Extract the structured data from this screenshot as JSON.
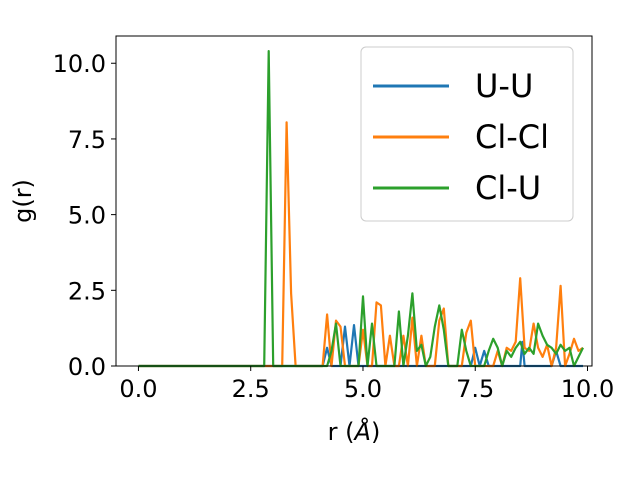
{
  "chart_data": {
    "type": "line",
    "title": "",
    "xlabel": "r (",
    "xlabel_symbol": "Å",
    "xlabel_close": ")",
    "ylabel": "g(r)",
    "xlim": [
      -0.5,
      10.1
    ],
    "ylim": [
      0,
      10.9
    ],
    "grid": false,
    "legend_position": "top-right",
    "x_ticks": [
      {
        "value": 0.0,
        "label": "0.0"
      },
      {
        "value": 2.5,
        "label": "2.5"
      },
      {
        "value": 5.0,
        "label": "5.0"
      },
      {
        "value": 7.5,
        "label": "7.5"
      },
      {
        "value": 10.0,
        "label": "10.0"
      }
    ],
    "y_ticks": [
      {
        "value": 0.0,
        "label": "0.0"
      },
      {
        "value": 2.5,
        "label": "2.5"
      },
      {
        "value": 5.0,
        "label": "5.0"
      },
      {
        "value": 7.5,
        "label": "7.5"
      },
      {
        "value": 10.0,
        "label": "10.0"
      }
    ],
    "series": [
      {
        "name": "U-U",
        "color": "#1f77b4",
        "points": [
          [
            0,
            0
          ],
          [
            4.1,
            0
          ],
          [
            4.2,
            0.6
          ],
          [
            4.3,
            0
          ],
          [
            4.5,
            0
          ],
          [
            4.6,
            1.3
          ],
          [
            4.7,
            0
          ],
          [
            4.8,
            1.35
          ],
          [
            4.9,
            0
          ],
          [
            7.4,
            0
          ],
          [
            7.5,
            0.6
          ],
          [
            7.6,
            0
          ],
          [
            7.7,
            0.5
          ],
          [
            7.8,
            0
          ],
          [
            8.5,
            0
          ],
          [
            8.55,
            0.8
          ],
          [
            8.6,
            0
          ],
          [
            9.2,
            0
          ],
          [
            9.3,
            0.5
          ],
          [
            9.4,
            0
          ],
          [
            9.9,
            0
          ]
        ]
      },
      {
        "name": "Cl-Cl",
        "color": "#ff7f0e",
        "points": [
          [
            0,
            0
          ],
          [
            3.2,
            0
          ],
          [
            3.3,
            8.05
          ],
          [
            3.4,
            2.4
          ],
          [
            3.5,
            0
          ],
          [
            4.1,
            0
          ],
          [
            4.2,
            1.7
          ],
          [
            4.3,
            0
          ],
          [
            4.4,
            1.5
          ],
          [
            4.5,
            1.3
          ],
          [
            4.6,
            0
          ],
          [
            4.9,
            0
          ],
          [
            5.0,
            1.2
          ],
          [
            5.1,
            0
          ],
          [
            5.2,
            0
          ],
          [
            5.3,
            2.1
          ],
          [
            5.4,
            2.0
          ],
          [
            5.5,
            0
          ],
          [
            5.6,
            1.0
          ],
          [
            5.7,
            0
          ],
          [
            5.8,
            0
          ],
          [
            5.9,
            1.0
          ],
          [
            6.0,
            0
          ],
          [
            6.1,
            1.6
          ],
          [
            6.2,
            0
          ],
          [
            6.3,
            1.0
          ],
          [
            6.4,
            0
          ],
          [
            6.6,
            0
          ],
          [
            6.7,
            1.5
          ],
          [
            6.8,
            1.9
          ],
          [
            6.9,
            0
          ],
          [
            7.2,
            0
          ],
          [
            7.3,
            1.1
          ],
          [
            7.4,
            1.5
          ],
          [
            7.5,
            0
          ],
          [
            7.9,
            0
          ],
          [
            8.0,
            0.5
          ],
          [
            8.1,
            0
          ],
          [
            8.2,
            0.6
          ],
          [
            8.3,
            0.5
          ],
          [
            8.4,
            0.8
          ],
          [
            8.5,
            2.9
          ],
          [
            8.6,
            0.6
          ],
          [
            8.7,
            0.5
          ],
          [
            8.8,
            1.4
          ],
          [
            8.9,
            0.6
          ],
          [
            9.0,
            0.3
          ],
          [
            9.1,
            0.7
          ],
          [
            9.2,
            0
          ],
          [
            9.3,
            0.6
          ],
          [
            9.4,
            2.65
          ],
          [
            9.5,
            0
          ],
          [
            9.6,
            0.4
          ],
          [
            9.7,
            0.9
          ],
          [
            9.8,
            0.5
          ],
          [
            9.9,
            0.6
          ]
        ]
      },
      {
        "name": "Cl-U",
        "color": "#2ca02c",
        "points": [
          [
            0,
            0
          ],
          [
            2.8,
            0
          ],
          [
            2.9,
            10.4
          ],
          [
            3.0,
            0
          ],
          [
            4.2,
            0
          ],
          [
            4.3,
            0.5
          ],
          [
            4.4,
            1.4
          ],
          [
            4.5,
            0
          ],
          [
            4.9,
            0
          ],
          [
            5.0,
            2.3
          ],
          [
            5.1,
            0
          ],
          [
            5.2,
            1.4
          ],
          [
            5.3,
            0
          ],
          [
            5.7,
            0
          ],
          [
            5.8,
            1.8
          ],
          [
            5.9,
            0
          ],
          [
            6.0,
            1.0
          ],
          [
            6.1,
            2.4
          ],
          [
            6.2,
            0.5
          ],
          [
            6.3,
            0.7
          ],
          [
            6.4,
            0
          ],
          [
            6.5,
            0.3
          ],
          [
            6.6,
            1.3
          ],
          [
            6.7,
            2.0
          ],
          [
            6.8,
            1.2
          ],
          [
            6.9,
            0
          ],
          [
            7.1,
            0
          ],
          [
            7.2,
            1.2
          ],
          [
            7.3,
            0.5
          ],
          [
            7.4,
            0
          ],
          [
            7.7,
            0
          ],
          [
            7.8,
            0.5
          ],
          [
            7.9,
            0.9
          ],
          [
            8.0,
            0.6
          ],
          [
            8.1,
            0
          ],
          [
            8.2,
            0.5
          ],
          [
            8.3,
            0.3
          ],
          [
            8.4,
            0.6
          ],
          [
            8.5,
            0.8
          ],
          [
            8.6,
            0.4
          ],
          [
            8.7,
            0.6
          ],
          [
            8.8,
            0.4
          ],
          [
            8.9,
            1.4
          ],
          [
            9.0,
            1.0
          ],
          [
            9.1,
            0.7
          ],
          [
            9.2,
            0.6
          ],
          [
            9.3,
            0.4
          ],
          [
            9.4,
            0.7
          ],
          [
            9.5,
            0.5
          ],
          [
            9.6,
            0.6
          ],
          [
            9.7,
            0
          ],
          [
            9.8,
            0.3
          ],
          [
            9.9,
            0.6
          ]
        ]
      }
    ]
  }
}
